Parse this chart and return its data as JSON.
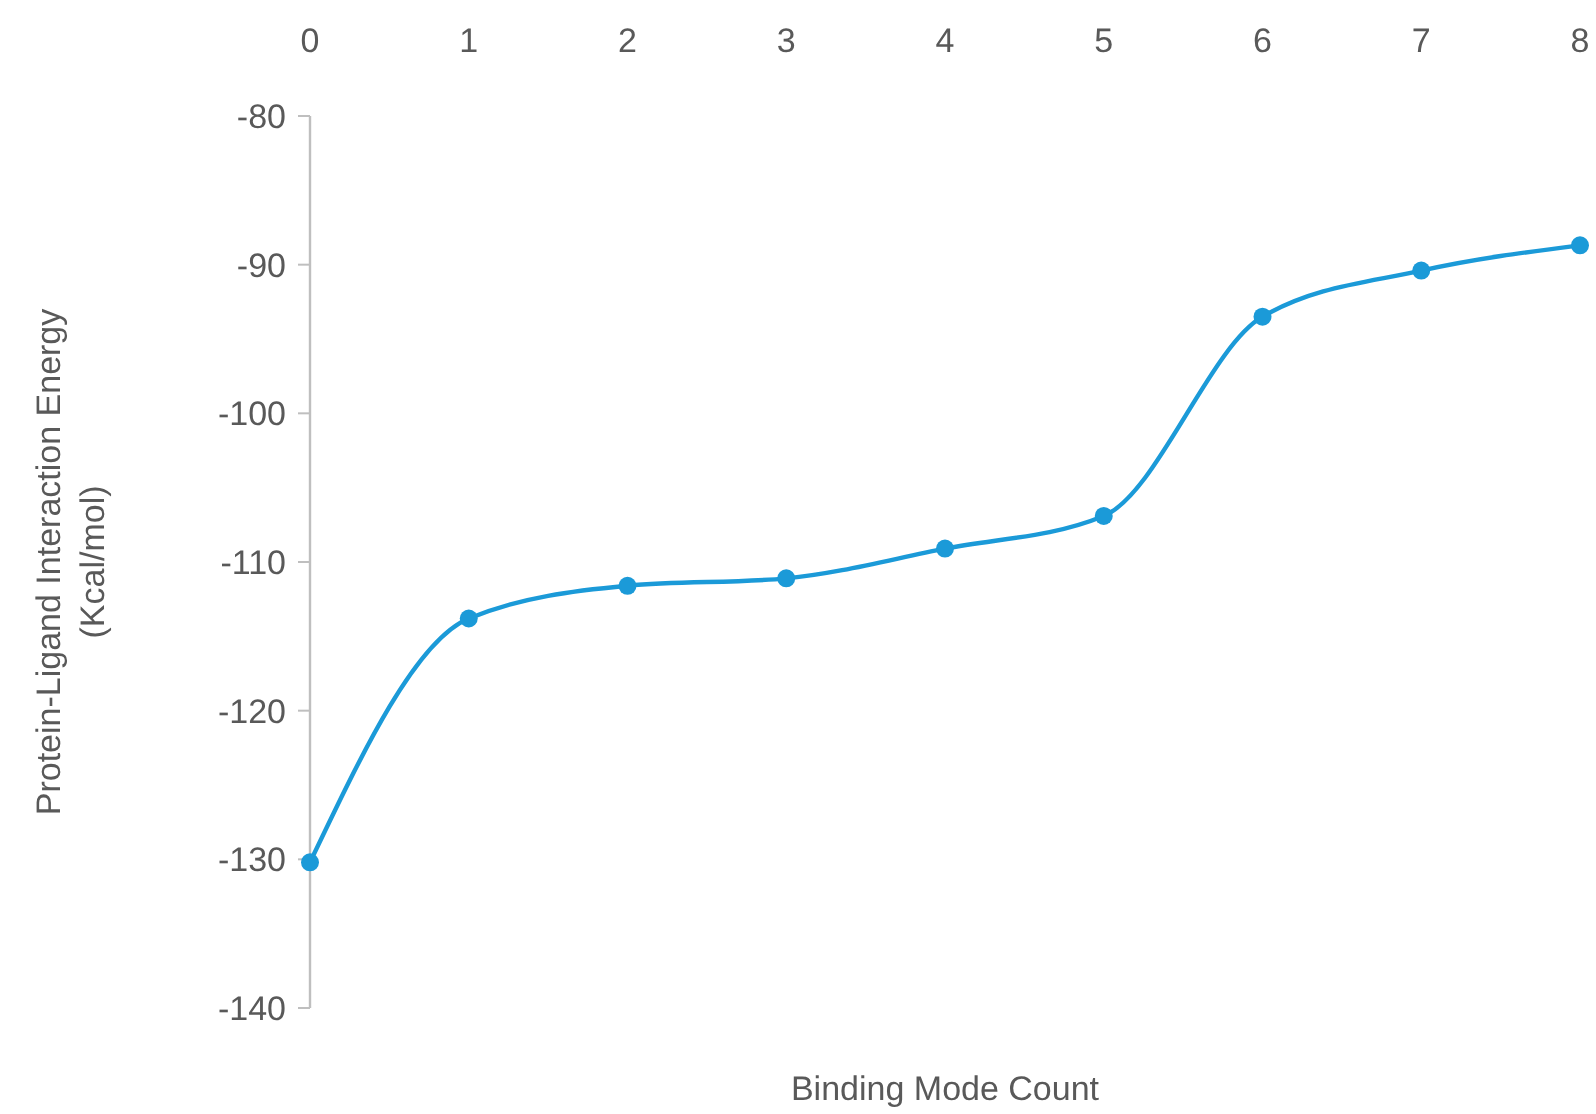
{
  "chart_data": {
    "type": "line",
    "xlabel": "Binding Mode Count",
    "ylabel": "Protein-Ligand Interaction Energy (Kcal/mol)",
    "x": [
      0,
      1,
      2,
      3,
      4,
      5,
      6,
      7,
      8
    ],
    "series": [
      {
        "color": "#1b9ad8",
        "values": [
          -130.2,
          -113.8,
          -111.6,
          -111.1,
          -109.1,
          -106.9,
          -93.5,
          -90.4,
          -88.7
        ]
      }
    ],
    "xlim": [
      0,
      8
    ],
    "xticks": [
      0,
      1,
      2,
      3,
      4,
      5,
      6,
      7,
      8
    ],
    "ylim": [
      -140,
      -80
    ],
    "yticks": [
      -140,
      -130,
      -120,
      -110,
      -100,
      -90,
      -80
    ],
    "grid": false,
    "marker": "circle",
    "line_style": "solid"
  }
}
